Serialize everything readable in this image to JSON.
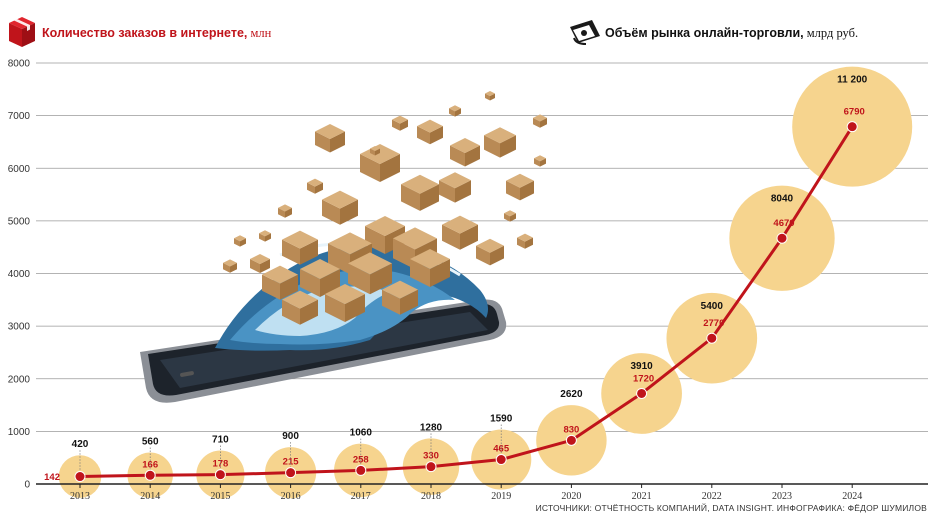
{
  "titles": {
    "orders_title": "Количество заказов в интернете,",
    "orders_unit": " млн",
    "market_title": "Объём рынка онлайн-торговли,",
    "market_unit": " млрд руб."
  },
  "source_note": "ИСТОЧНИКИ: ОТЧЁТНОСТЬ КОМПАНИЙ, DATA INSIGHT. ИНФОГРАФИКА: ФЁДОР ШУМИЛОВ",
  "icons": {
    "orders": "box-icon",
    "market": "cash-icon",
    "illustration": "smartphone-with-wave-of-parcels-illustration"
  },
  "colors": {
    "accent_red": "#c0141b",
    "bubble": "#f6d48e",
    "line": "#c0141b",
    "grid": "#9a9a9a"
  },
  "chart_data": {
    "type": "line",
    "categories": [
      "2013",
      "2014",
      "2015",
      "2016",
      "2017",
      "2018",
      "2019",
      "2020",
      "2021",
      "2022",
      "2023",
      "2024"
    ],
    "ylim": [
      0,
      8000
    ],
    "yticks": [
      "0",
      "1000",
      "2000",
      "3000",
      "4000",
      "5000",
      "6000",
      "7000",
      "8000"
    ],
    "grid": true,
    "series": [
      {
        "name": "Количество заказов в интернете, млн",
        "values": [
          142,
          166,
          178,
          215,
          258,
          330,
          465,
          830,
          1720,
          2770,
          4670,
          6790
        ],
        "labels": [
          "142",
          "166",
          "178",
          "215",
          "258",
          "330",
          "465",
          "830",
          "1720",
          "2770",
          "4670",
          "6790"
        ]
      },
      {
        "name": "Объём рынка онлайн-торговли, млрд руб.",
        "values": [
          420,
          560,
          710,
          900,
          1060,
          1280,
          1590,
          2620,
          3910,
          5400,
          8040,
          11200
        ],
        "labels": [
          "420",
          "560",
          "710",
          "900",
          "1060",
          "1280",
          "1590",
          "2620",
          "3910",
          "5400",
          "8040",
          "11 200"
        ]
      }
    ]
  }
}
